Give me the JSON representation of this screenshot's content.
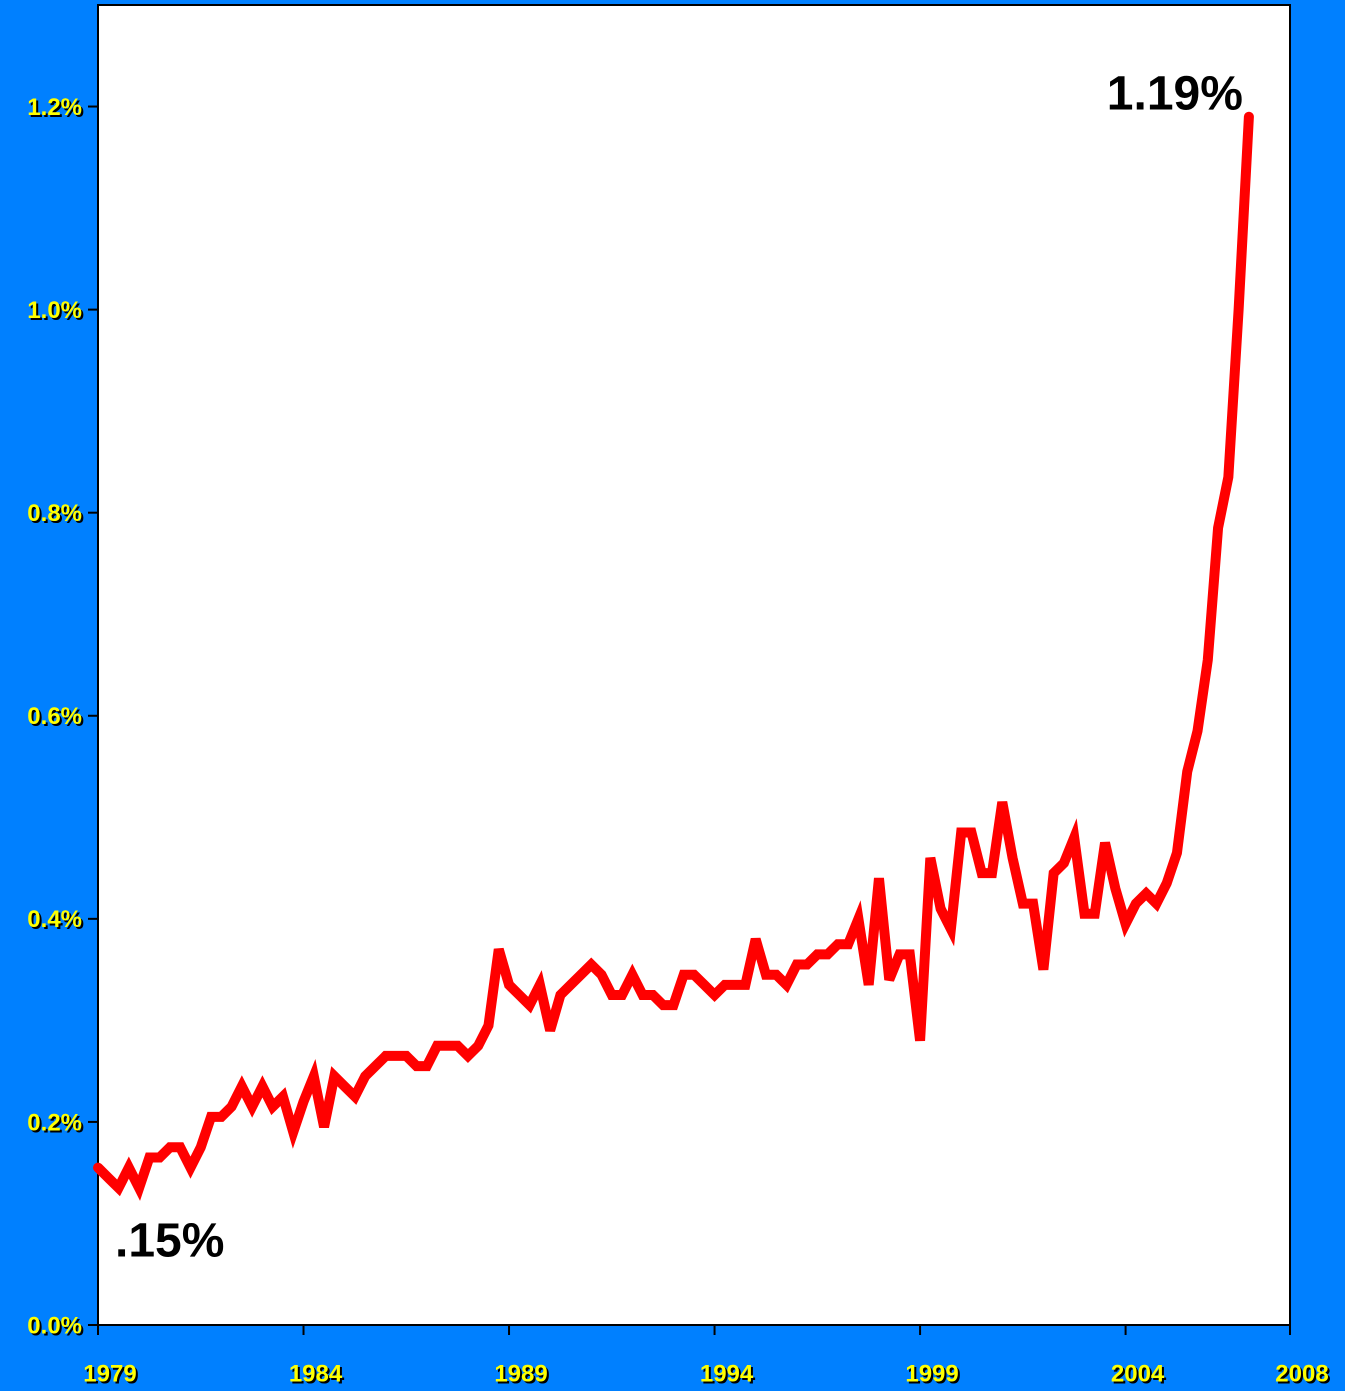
{
  "chart_data": {
    "type": "line",
    "annotations": [
      ".15%",
      "1.19%"
    ],
    "x": [
      1979,
      1979.25,
      1979.5,
      1979.75,
      1980,
      1980.25,
      1980.5,
      1980.75,
      1981,
      1981.25,
      1981.5,
      1981.75,
      1982,
      1982.25,
      1982.5,
      1982.75,
      1983,
      1983.25,
      1983.5,
      1983.75,
      1984,
      1984.25,
      1984.5,
      1984.75,
      1985,
      1985.25,
      1985.5,
      1985.75,
      1986,
      1986.25,
      1986.5,
      1986.75,
      1987,
      1987.25,
      1987.5,
      1987.75,
      1988,
      1988.25,
      1988.5,
      1988.75,
      1989,
      1989.25,
      1989.5,
      1989.75,
      1990,
      1990.25,
      1990.5,
      1990.75,
      1991,
      1991.25,
      1991.5,
      1991.75,
      1992,
      1992.25,
      1992.5,
      1992.75,
      1993,
      1993.25,
      1993.5,
      1993.75,
      1994,
      1994.25,
      1994.5,
      1994.75,
      1995,
      1995.25,
      1995.5,
      1995.75,
      1996,
      1996.25,
      1996.5,
      1996.75,
      1997,
      1997.25,
      1997.5,
      1997.75,
      1998,
      1998.25,
      1998.5,
      1998.75,
      1999,
      1999.25,
      1999.5,
      1999.75,
      2000,
      2000.25,
      2000.5,
      2000.75,
      2001,
      2001.25,
      2001.5,
      2001.75,
      2002,
      2002.25,
      2002.5,
      2002.75,
      2003,
      2003.25,
      2003.5,
      2003.75,
      2004,
      2004.25,
      2004.5,
      2004.75,
      2005,
      2005.25,
      2005.5,
      2005.75,
      2006,
      2006.25,
      2006.5,
      2006.75,
      2007
    ],
    "series": [
      {
        "color": "#ff0000",
        "values": [
          0.155,
          0.145,
          0.135,
          0.155,
          0.135,
          0.165,
          0.165,
          0.175,
          0.175,
          0.155,
          0.175,
          0.205,
          0.205,
          0.215,
          0.235,
          0.215,
          0.235,
          0.215,
          0.225,
          0.19,
          0.22,
          0.245,
          0.195,
          0.245,
          0.235,
          0.225,
          0.245,
          0.255,
          0.265,
          0.265,
          0.265,
          0.255,
          0.255,
          0.275,
          0.275,
          0.275,
          0.265,
          0.275,
          0.295,
          0.37,
          0.335,
          0.325,
          0.315,
          0.335,
          0.29,
          0.325,
          0.335,
          0.345,
          0.355,
          0.345,
          0.325,
          0.325,
          0.345,
          0.325,
          0.325,
          0.315,
          0.315,
          0.345,
          0.345,
          0.335,
          0.325,
          0.335,
          0.335,
          0.335,
          0.38,
          0.345,
          0.345,
          0.335,
          0.355,
          0.355,
          0.365,
          0.365,
          0.375,
          0.375,
          0.4,
          0.335,
          0.44,
          0.34,
          0.365,
          0.365,
          0.28,
          0.46,
          0.41,
          0.39,
          0.485,
          0.485,
          0.445,
          0.445,
          0.515,
          0.46,
          0.415,
          0.415,
          0.35,
          0.445,
          0.455,
          0.48,
          0.405,
          0.405,
          0.475,
          0.43,
          0.395,
          0.415,
          0.425,
          0.415,
          0.435,
          0.465,
          0.545,
          0.585,
          0.655,
          0.785,
          0.835,
          1.0,
          1.19
        ]
      }
    ],
    "xlim": [
      1979,
      2008
    ],
    "xticks": [
      1979,
      1984,
      1989,
      1994,
      1999,
      2004,
      2008
    ],
    "ylim": [
      0,
      1.3
    ],
    "yticks": [
      {
        "value": 0,
        "label": "0.0%"
      },
      {
        "value": 0.2,
        "label": "0.2%"
      },
      {
        "value": 0.4,
        "label": "0.4%"
      },
      {
        "value": 0.6,
        "label": "0.6%"
      },
      {
        "value": 0.8,
        "label": "0.8%"
      },
      {
        "value": 1.0,
        "label": "1.0%"
      },
      {
        "value": 1.2,
        "label": "1.2%"
      }
    ],
    "background": "#0080ff"
  }
}
